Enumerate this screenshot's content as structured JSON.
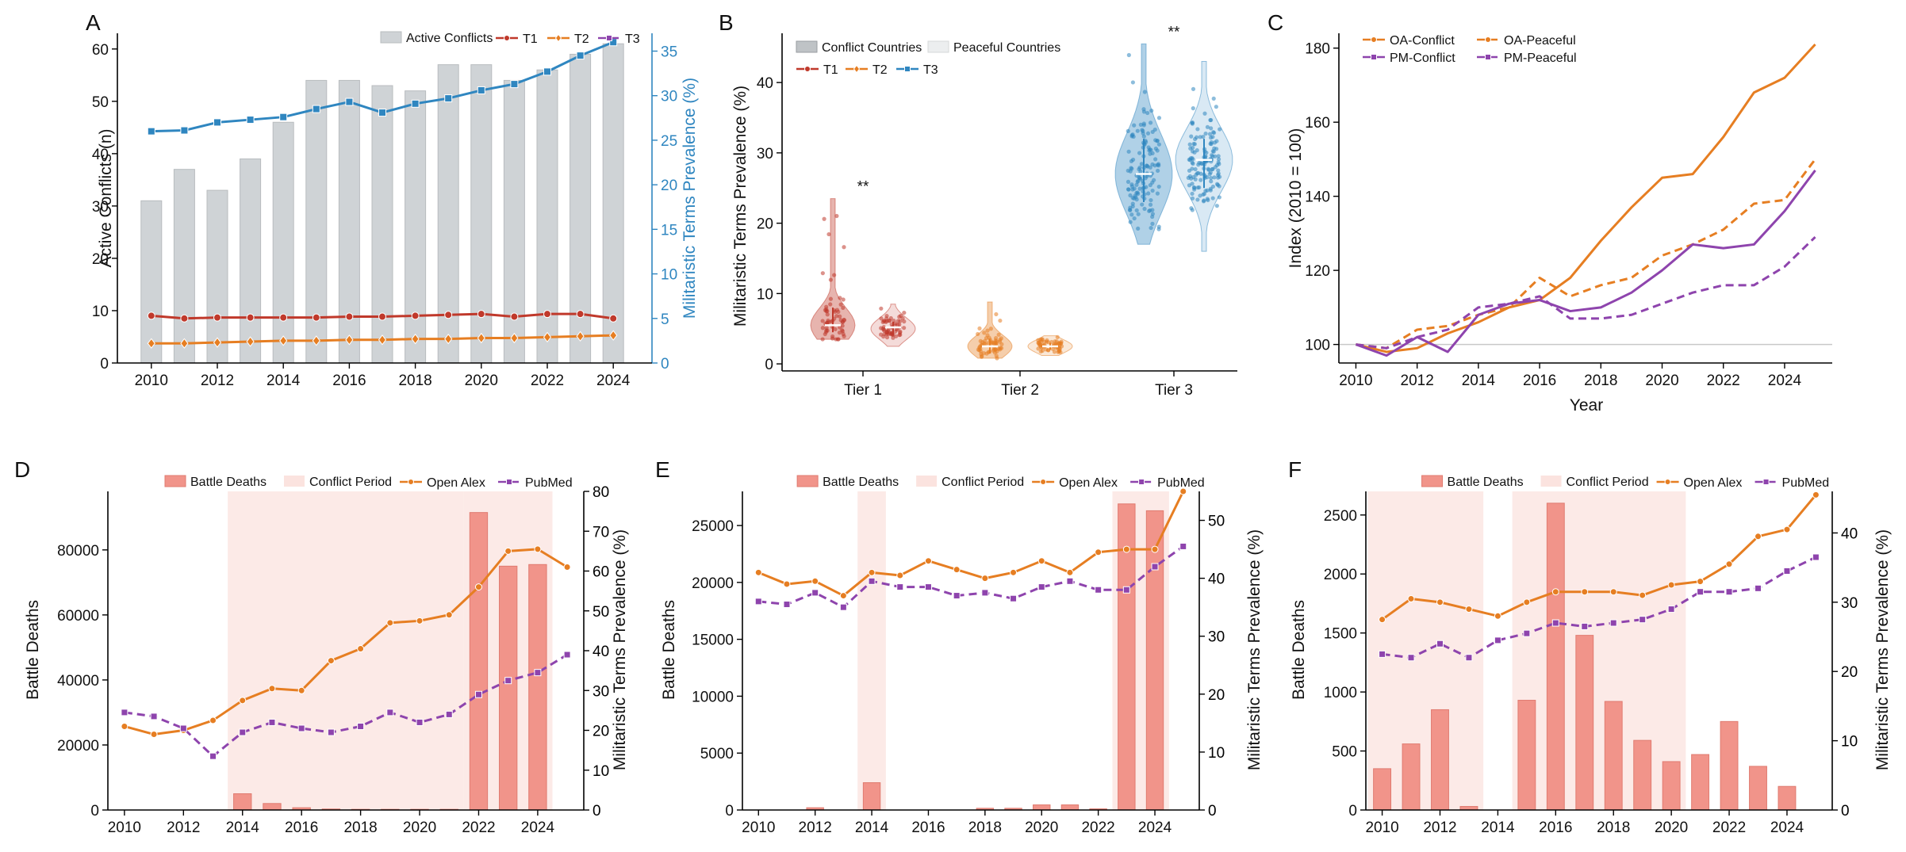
{
  "chart_data": [
    {
      "panel": "A",
      "type": "bar+line",
      "x": [
        2010,
        2011,
        2012,
        2013,
        2014,
        2015,
        2016,
        2017,
        2018,
        2019,
        2020,
        2021,
        2022,
        2023,
        2024
      ],
      "bars": {
        "name": "Active Conflicts",
        "values": [
          31,
          37,
          33,
          39,
          46,
          54,
          54,
          53,
          52,
          57,
          57,
          54,
          56,
          59,
          61
        ]
      },
      "series": [
        {
          "name": "T1",
          "values": [
            5.3,
            5.0,
            5.1,
            5.1,
            5.1,
            5.1,
            5.2,
            5.2,
            5.3,
            5.4,
            5.5,
            5.2,
            5.5,
            5.5,
            5.0
          ]
        },
        {
          "name": "T2",
          "values": [
            2.2,
            2.2,
            2.3,
            2.4,
            2.5,
            2.5,
            2.6,
            2.6,
            2.7,
            2.7,
            2.8,
            2.8,
            2.9,
            3.0,
            3.1
          ]
        },
        {
          "name": "T3",
          "values": [
            26.0,
            26.1,
            27.0,
            27.3,
            27.6,
            28.5,
            29.3,
            28.1,
            29.1,
            29.7,
            30.6,
            31.3,
            32.7,
            34.5,
            36.0
          ]
        }
      ],
      "ylabel": "Active Conflicts (n)",
      "y2label": "Militaristic Terms Prevalence (%)",
      "ylim": [
        0,
        63
      ],
      "y2lim": [
        0,
        37
      ],
      "yticks": [
        0,
        10,
        20,
        30,
        40,
        50,
        60
      ],
      "y2ticks": [
        0,
        5,
        10,
        15,
        20,
        25,
        30,
        35
      ],
      "xticks": [
        2010,
        2012,
        2014,
        2016,
        2018,
        2020,
        2022,
        2024
      ]
    },
    {
      "panel": "B",
      "type": "violin",
      "categories": [
        "Tier 1",
        "Tier 2",
        "Tier 3"
      ],
      "groups": [
        "Conflict Countries",
        "Peaceful Countries"
      ],
      "tiers": [
        "T1",
        "T2",
        "T3"
      ],
      "violins": [
        {
          "tier": "Tier 1",
          "group": "conflict",
          "min": 3.5,
          "q1": 4.5,
          "median": 5.5,
          "q3": 8.0,
          "max": 23.5,
          "mode": 5.5
        },
        {
          "tier": "Tier 1",
          "group": "peaceful",
          "min": 2.5,
          "q1": 4.0,
          "median": 5.2,
          "q3": 6.0,
          "max": 8.5,
          "mode": 5.0
        },
        {
          "tier": "Tier 2",
          "group": "conflict",
          "min": 0.8,
          "q1": 1.5,
          "median": 2.5,
          "q3": 3.5,
          "max": 8.8,
          "mode": 2.5
        },
        {
          "tier": "Tier 2",
          "group": "peaceful",
          "min": 1.2,
          "q1": 2.0,
          "median": 2.5,
          "q3": 3.0,
          "max": 4.0,
          "mode": 2.5
        },
        {
          "tier": "Tier 3",
          "group": "conflict",
          "min": 17.0,
          "q1": 23.0,
          "median": 27.0,
          "q3": 32.0,
          "max": 45.5,
          "mode": 27.0
        },
        {
          "tier": "Tier 3",
          "group": "peaceful",
          "min": 16.0,
          "q1": 25.0,
          "median": 29.0,
          "q3": 32.0,
          "max": 43.0,
          "mode": 29.0
        }
      ],
      "annotations": [
        {
          "tier": "Tier 1",
          "text": "**",
          "y": 24.5
        },
        {
          "tier": "Tier 3",
          "text": "**",
          "y": 46.5
        }
      ],
      "ylabel": "Militaristic Terms Prevalence (%)",
      "ylim": [
        -1,
        47
      ],
      "yticks": [
        0,
        10,
        20,
        30,
        40
      ]
    },
    {
      "panel": "C",
      "type": "line",
      "x": [
        2010,
        2011,
        2012,
        2013,
        2014,
        2015,
        2016,
        2017,
        2018,
        2019,
        2020,
        2021,
        2022,
        2023,
        2024,
        2025
      ],
      "series": [
        {
          "name": "OA-Conflict",
          "values": [
            100,
            98,
            99,
            103,
            106,
            110,
            112,
            118,
            128,
            137,
            145,
            146,
            156,
            168,
            172,
            181
          ]
        },
        {
          "name": "OA-Peaceful",
          "values": [
            100,
            99,
            104,
            105,
            108,
            110,
            118,
            113,
            116,
            118,
            124,
            127,
            131,
            138,
            139,
            150
          ]
        },
        {
          "name": "PM-Conflict",
          "values": [
            100,
            97,
            102,
            98,
            108,
            111,
            112,
            109,
            110,
            114,
            120,
            127,
            126,
            127,
            136,
            147
          ]
        },
        {
          "name": "PM-Peaceful",
          "values": [
            100,
            99,
            102,
            104,
            110,
            111,
            113,
            107,
            107,
            108,
            111,
            114,
            116,
            116,
            121,
            129
          ]
        }
      ],
      "baseline": 100,
      "xlabel": "Year",
      "ylabel": "Index (2010 = 100)",
      "ylim": [
        95,
        184
      ],
      "yticks": [
        100,
        120,
        140,
        160,
        180
      ],
      "xticks": [
        2010,
        2012,
        2014,
        2016,
        2018,
        2020,
        2022,
        2024
      ]
    },
    {
      "panel": "D",
      "type": "bar+line",
      "x": [
        2010,
        2011,
        2012,
        2013,
        2014,
        2015,
        2016,
        2017,
        2018,
        2019,
        2020,
        2021,
        2022,
        2023,
        2024,
        2025
      ],
      "bars": {
        "name": "Battle Deaths",
        "years": [
          2014,
          2015,
          2016,
          2017,
          2018,
          2019,
          2020,
          2021,
          2022,
          2023,
          2024
        ],
        "values": [
          5000,
          2000,
          700,
          300,
          200,
          200,
          200,
          200,
          91500,
          75000,
          75500
        ]
      },
      "conflict_periods": [
        [
          2013.5,
          2021.5
        ],
        [
          2021.5,
          2024.5
        ]
      ],
      "series": [
        {
          "name": "Open Alex",
          "values": [
            21,
            19,
            20,
            22.5,
            27.5,
            30.5,
            30,
            37.5,
            40.5,
            47,
            47.5,
            49,
            56,
            65,
            65.5,
            61
          ]
        },
        {
          "name": "PubMed",
          "values": [
            24.5,
            23.5,
            20.5,
            13.5,
            19.5,
            22,
            20.5,
            19.5,
            21,
            24.5,
            22,
            24,
            29,
            32.5,
            34.5,
            39
          ]
        }
      ],
      "ylabel": "Battle Deaths",
      "y2label": "Militaristic Terms Prevalence (%)",
      "ylim": [
        0,
        98000
      ],
      "y2lim": [
        0,
        80
      ],
      "yticks": [
        0,
        20000,
        40000,
        60000,
        80000
      ],
      "y2ticks": [
        0,
        10,
        20,
        30,
        40,
        50,
        60,
        70,
        80
      ],
      "xticks": [
        2010,
        2012,
        2014,
        2016,
        2018,
        2020,
        2022,
        2024
      ]
    },
    {
      "panel": "E",
      "type": "bar+line",
      "x": [
        2010,
        2011,
        2012,
        2013,
        2014,
        2015,
        2016,
        2017,
        2018,
        2019,
        2020,
        2021,
        2022,
        2023,
        2024,
        2025
      ],
      "bars": {
        "name": "Battle Deaths",
        "years": [
          2012,
          2014,
          2018,
          2019,
          2020,
          2021,
          2022,
          2023,
          2024
        ],
        "values": [
          200,
          2400,
          150,
          150,
          450,
          450,
          100,
          26900,
          26300
        ]
      },
      "conflict_periods": [
        [
          2013.5,
          2014.5
        ],
        [
          2022.5,
          2024.5
        ]
      ],
      "series": [
        {
          "name": "Open Alex",
          "values": [
            41,
            39,
            39.5,
            37,
            41,
            40.5,
            43,
            41.5,
            40,
            41,
            43,
            41,
            44.5,
            45,
            45,
            55
          ]
        },
        {
          "name": "PubMed",
          "values": [
            36,
            35.5,
            37.5,
            35,
            39.5,
            38.5,
            38.5,
            37,
            37.5,
            36.5,
            38.5,
            39.5,
            38,
            38,
            42,
            45.5
          ]
        }
      ],
      "ylabel": "Battle Deaths",
      "y2label": "Militaristic Terms Prevalence (%)",
      "ylim": [
        0,
        28000
      ],
      "y2lim": [
        0,
        55
      ],
      "yticks": [
        0,
        5000,
        10000,
        15000,
        20000,
        25000
      ],
      "y2ticks": [
        0,
        10,
        20,
        30,
        40,
        50
      ],
      "xticks": [
        2010,
        2012,
        2014,
        2016,
        2018,
        2020,
        2022,
        2024
      ]
    },
    {
      "panel": "F",
      "type": "bar+line",
      "x": [
        2010,
        2011,
        2012,
        2013,
        2014,
        2015,
        2016,
        2017,
        2018,
        2019,
        2020,
        2021,
        2022,
        2023,
        2024,
        2025
      ],
      "bars": {
        "name": "Battle Deaths",
        "years": [
          2010,
          2011,
          2012,
          2013,
          2015,
          2016,
          2017,
          2018,
          2019,
          2020,
          2021,
          2022,
          2023,
          2024
        ],
        "values": [
          350,
          560,
          850,
          30,
          930,
          2600,
          1480,
          920,
          590,
          410,
          470,
          750,
          370,
          200
        ]
      },
      "conflict_periods": [
        [
          2009.5,
          2013.5
        ],
        [
          2014.5,
          2020.5
        ]
      ],
      "series": [
        {
          "name": "Open Alex",
          "values": [
            27.5,
            30.5,
            30,
            29,
            28,
            30,
            31.5,
            31.5,
            31.5,
            31,
            32.5,
            33,
            35.5,
            39.5,
            40.5,
            45.5
          ]
        },
        {
          "name": "PubMed",
          "values": [
            22.5,
            22,
            24,
            22,
            24.5,
            25.5,
            27,
            26.5,
            27,
            27.5,
            29,
            31.5,
            31.5,
            32,
            34.5,
            36.5
          ]
        }
      ],
      "ylabel": "Battle Deaths",
      "y2label": "Militaristic Terms Prevalence (%)",
      "ylim": [
        0,
        2700
      ],
      "y2lim": [
        0,
        46
      ],
      "yticks": [
        0,
        500,
        1000,
        1500,
        2000,
        2500
      ],
      "y2ticks": [
        0,
        10,
        20,
        30,
        40
      ],
      "xticks": [
        2010,
        2012,
        2014,
        2016,
        2018,
        2020,
        2022,
        2024
      ]
    }
  ],
  "legend_labels": {
    "active_conflicts": "Active Conflicts",
    "t1": "T1",
    "t2": "T2",
    "t3": "T3",
    "conflict_countries": "Conflict Countries",
    "peaceful_countries": "Peaceful Countries",
    "oa_conflict": "OA-Conflict",
    "oa_peaceful": "OA-Peaceful",
    "pm_conflict": "PM-Conflict",
    "pm_peaceful": "PM-Peaceful",
    "battle_deaths": "Battle Deaths",
    "conflict_period": "Conflict Period",
    "open_alex": "Open Alex",
    "pubmed": "PubMed"
  },
  "panel_letters": [
    "A",
    "B",
    "C",
    "D",
    "E",
    "F"
  ],
  "colors": {
    "bar_grey": "#cfd3d6",
    "t1_red": "#c0392b",
    "t2_orange": "#e67e22",
    "t3_blue": "#2f86c0",
    "oa_orange": "#e67e22",
    "pm_purple": "#8e44ad",
    "deaths_bar": "#f1948a",
    "period_shade": "#fbe3df"
  }
}
